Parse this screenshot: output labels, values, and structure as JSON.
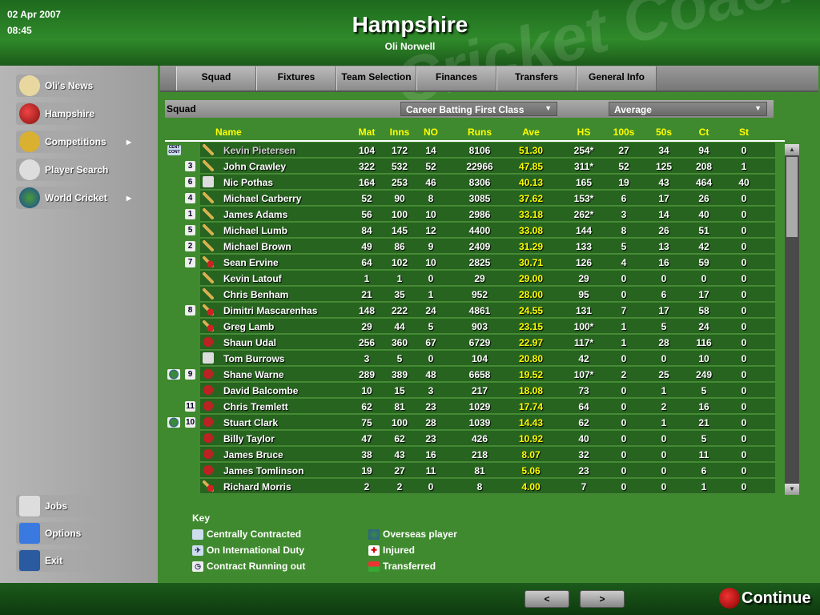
{
  "header": {
    "date": "02 Apr 2007",
    "time": "08:45",
    "title": "Hampshire",
    "manager": "Oli Norwell",
    "watermark": "Cricket Coach"
  },
  "sidebar": {
    "items": [
      {
        "label": "Oli's News",
        "icon": "envelope-icon",
        "arrow": false
      },
      {
        "label": "Hampshire",
        "icon": "cricket-ball-icon",
        "arrow": false
      },
      {
        "label": "Competitions",
        "icon": "trophy-icon",
        "arrow": true
      },
      {
        "label": "Player Search",
        "icon": "magnifier-icon",
        "arrow": false
      },
      {
        "label": "World Cricket",
        "icon": "globe-icon",
        "arrow": true
      }
    ],
    "bottom_items": [
      {
        "label": "Jobs",
        "icon": "newspaper-icon"
      },
      {
        "label": "Options",
        "icon": "checkmark-icon"
      },
      {
        "label": "Exit",
        "icon": "floppy-disk-icon"
      }
    ]
  },
  "tabs": [
    "Squad",
    "Fixtures",
    "Team Selection",
    "Finances",
    "Transfers",
    "General Info"
  ],
  "filter": {
    "label": "Squad",
    "stats_type": "Career Batting First Class",
    "sort": "Average"
  },
  "columns": [
    "Name",
    "Mat",
    "Inns",
    "NO",
    "Runs",
    "Ave",
    "HS",
    "100s",
    "50s",
    "Ct",
    "St"
  ],
  "players": [
    {
      "name": "Kevin Pietersen",
      "contract": true,
      "overseas": false,
      "shirt": "",
      "role": "batsman",
      "stats": [
        "104",
        "172",
        "14",
        "8106",
        "51.30",
        "254*",
        "27",
        "34",
        "94",
        "0"
      ]
    },
    {
      "name": "John Crawley",
      "contract": false,
      "overseas": false,
      "shirt": "3",
      "role": "batsman",
      "stats": [
        "322",
        "532",
        "52",
        "22966",
        "47.85",
        "311*",
        "52",
        "125",
        "208",
        "1"
      ]
    },
    {
      "name": "Nic Pothas",
      "contract": false,
      "overseas": false,
      "shirt": "6",
      "role": "wicket-keeper",
      "stats": [
        "164",
        "253",
        "46",
        "8306",
        "40.13",
        "165",
        "19",
        "43",
        "464",
        "40"
      ]
    },
    {
      "name": "Michael Carberry",
      "contract": false,
      "overseas": false,
      "shirt": "4",
      "role": "batsman",
      "stats": [
        "52",
        "90",
        "8",
        "3085",
        "37.62",
        "153*",
        "6",
        "17",
        "26",
        "0"
      ]
    },
    {
      "name": "James Adams",
      "contract": false,
      "overseas": false,
      "shirt": "1",
      "role": "batsman-part-time-bowler",
      "stats": [
        "56",
        "100",
        "10",
        "2986",
        "33.18",
        "262*",
        "3",
        "14",
        "40",
        "0"
      ]
    },
    {
      "name": "Michael Lumb",
      "contract": false,
      "overseas": false,
      "shirt": "5",
      "role": "batsman",
      "stats": [
        "84",
        "145",
        "12",
        "4400",
        "33.08",
        "144",
        "8",
        "26",
        "51",
        "0"
      ]
    },
    {
      "name": "Michael Brown",
      "contract": false,
      "overseas": false,
      "shirt": "2",
      "role": "batsman-part-time-bowler",
      "stats": [
        "49",
        "86",
        "9",
        "2409",
        "31.29",
        "133",
        "5",
        "13",
        "42",
        "0"
      ]
    },
    {
      "name": "Sean Ervine",
      "contract": false,
      "overseas": false,
      "shirt": "7",
      "role": "all-rounder",
      "stats": [
        "64",
        "102",
        "10",
        "2825",
        "30.71",
        "126",
        "4",
        "16",
        "59",
        "0"
      ]
    },
    {
      "name": "Kevin Latouf",
      "contract": false,
      "overseas": false,
      "shirt": "",
      "role": "batsman",
      "stats": [
        "1",
        "1",
        "0",
        "29",
        "29.00",
        "29",
        "0",
        "0",
        "0",
        "0"
      ]
    },
    {
      "name": "Chris Benham",
      "contract": false,
      "overseas": false,
      "shirt": "",
      "role": "batsman-part-time-bowler",
      "stats": [
        "21",
        "35",
        "1",
        "952",
        "28.00",
        "95",
        "0",
        "6",
        "17",
        "0"
      ]
    },
    {
      "name": "Dimitri Mascarenhas",
      "contract": false,
      "overseas": false,
      "shirt": "8",
      "role": "all-rounder",
      "stats": [
        "148",
        "222",
        "24",
        "4861",
        "24.55",
        "131",
        "7",
        "17",
        "58",
        "0"
      ]
    },
    {
      "name": "Greg Lamb",
      "contract": false,
      "overseas": false,
      "shirt": "",
      "role": "all-rounder",
      "stats": [
        "29",
        "44",
        "5",
        "903",
        "23.15",
        "100*",
        "1",
        "5",
        "24",
        "0"
      ]
    },
    {
      "name": "Shaun Udal",
      "contract": false,
      "overseas": false,
      "shirt": "",
      "role": "bowler",
      "stats": [
        "256",
        "360",
        "67",
        "6729",
        "22.97",
        "117*",
        "1",
        "28",
        "116",
        "0"
      ]
    },
    {
      "name": "Tom Burrows",
      "contract": false,
      "overseas": false,
      "shirt": "",
      "role": "wicket-keeper",
      "stats": [
        "3",
        "5",
        "0",
        "104",
        "20.80",
        "42",
        "0",
        "0",
        "10",
        "0"
      ]
    },
    {
      "name": "Shane Warne",
      "contract": false,
      "overseas": true,
      "shirt": "9",
      "role": "bowler",
      "stats": [
        "289",
        "389",
        "48",
        "6658",
        "19.52",
        "107*",
        "2",
        "25",
        "249",
        "0"
      ]
    },
    {
      "name": "David Balcombe",
      "contract": false,
      "overseas": false,
      "shirt": "",
      "role": "bowler",
      "stats": [
        "10",
        "15",
        "3",
        "217",
        "18.08",
        "73",
        "0",
        "1",
        "5",
        "0"
      ]
    },
    {
      "name": "Chris Tremlett",
      "contract": false,
      "overseas": false,
      "shirt": "11",
      "role": "bowler",
      "stats": [
        "62",
        "81",
        "23",
        "1029",
        "17.74",
        "64",
        "0",
        "2",
        "16",
        "0"
      ]
    },
    {
      "name": "Stuart Clark",
      "contract": false,
      "overseas": true,
      "shirt": "10",
      "role": "bowler",
      "stats": [
        "75",
        "100",
        "28",
        "1039",
        "14.43",
        "62",
        "0",
        "1",
        "21",
        "0"
      ]
    },
    {
      "name": "Billy Taylor",
      "contract": false,
      "overseas": false,
      "shirt": "",
      "role": "bowler",
      "stats": [
        "47",
        "62",
        "23",
        "426",
        "10.92",
        "40",
        "0",
        "0",
        "5",
        "0"
      ]
    },
    {
      "name": "James Bruce",
      "contract": false,
      "overseas": false,
      "shirt": "",
      "role": "bowler",
      "stats": [
        "38",
        "43",
        "16",
        "218",
        "8.07",
        "32",
        "0",
        "0",
        "11",
        "0"
      ]
    },
    {
      "name": "James Tomlinson",
      "contract": false,
      "overseas": false,
      "shirt": "",
      "role": "bowler",
      "stats": [
        "19",
        "27",
        "11",
        "81",
        "5.06",
        "23",
        "0",
        "0",
        "6",
        "0"
      ]
    },
    {
      "name": "Richard Morris",
      "contract": false,
      "overseas": false,
      "shirt": "",
      "role": "all-rounder",
      "stats": [
        "2",
        "2",
        "0",
        "8",
        "4.00",
        "7",
        "0",
        "0",
        "1",
        "0"
      ]
    }
  ],
  "contract_badge": "CENT CONT",
  "key": {
    "title": "Key",
    "items": [
      {
        "label": "Centrally Contracted",
        "icon": "central-contract-icon"
      },
      {
        "label": "On International Duty",
        "icon": "airplane-icon"
      },
      {
        "label": "Contract Running out",
        "icon": "clock-icon"
      },
      {
        "label": "Overseas player",
        "icon": "globe-icon"
      },
      {
        "label": "Injured",
        "icon": "red-cross-icon"
      },
      {
        "label": "Transferred",
        "icon": "transfer-arrows-icon"
      }
    ]
  },
  "footer": {
    "prev": "<",
    "next": ">",
    "continue": "Continue"
  },
  "colors": {
    "accent_yellow": "#ffff00",
    "grass": "#3f8a2e",
    "sidebar": "#a8a8a8"
  }
}
